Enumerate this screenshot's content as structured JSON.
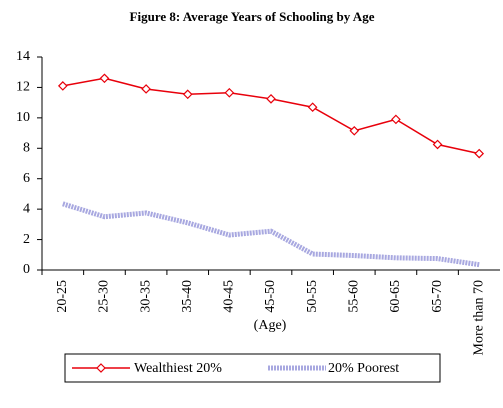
{
  "chart_data": {
    "type": "line",
    "title": "Figure 8: Average Years of Schooling by Age",
    "x_label": "(Age)",
    "categories": [
      "20-25",
      "25-30",
      "30-35",
      "35-40",
      "40-45",
      "45-50",
      "50-55",
      "55-60",
      "60-65",
      "65-70",
      "More than 70"
    ],
    "series": [
      {
        "name": "Wealthiest 20%",
        "color": "#e8000b",
        "values": [
          12.1,
          12.6,
          11.9,
          11.55,
          11.65,
          11.25,
          10.7,
          9.15,
          9.9,
          8.25,
          7.65
        ]
      },
      {
        "name": "20% Poorest",
        "color": "#a8a8e0",
        "values": [
          4.35,
          3.5,
          3.75,
          3.1,
          2.3,
          2.55,
          1.05,
          0.95,
          0.8,
          0.75,
          0.35
        ]
      }
    ],
    "ylim": [
      0,
      14
    ],
    "yticks": [
      0,
      2,
      4,
      6,
      8,
      10,
      12,
      14
    ],
    "legend": "bottom"
  }
}
